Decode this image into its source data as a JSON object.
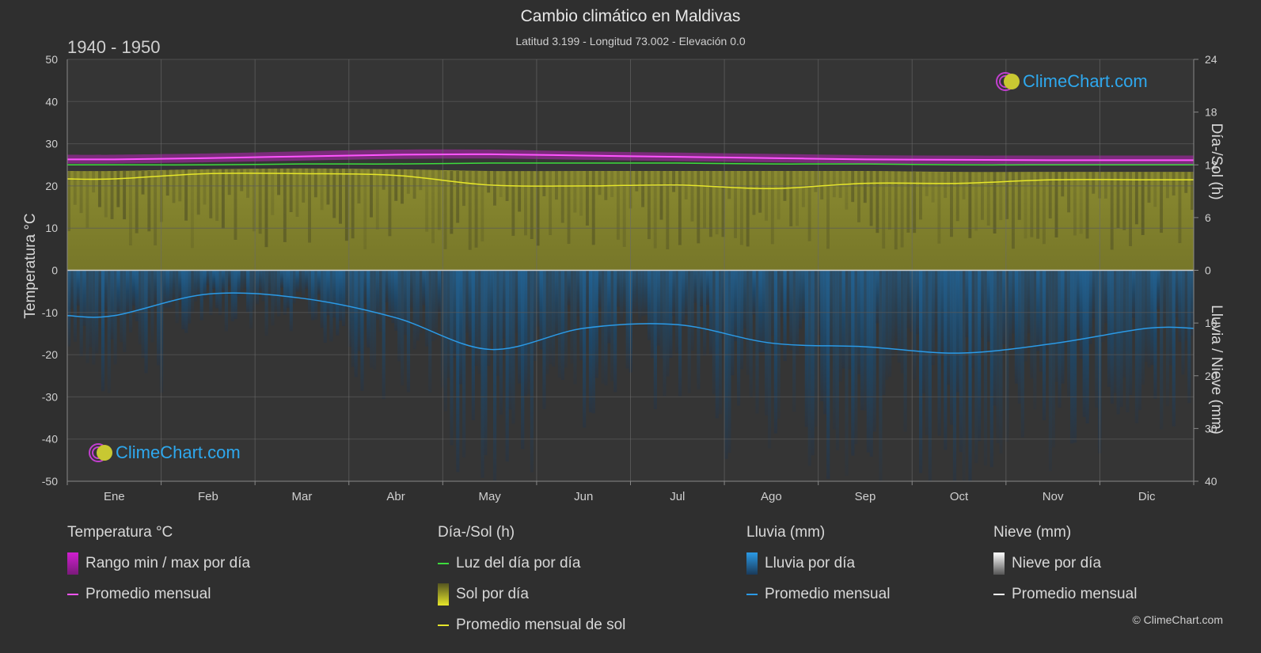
{
  "header": {
    "title": "Cambio climático en Maldivas",
    "subtitle": "Latitud 3.199 - Longitud 73.002 - Elevación 0.0",
    "period": "1940 - 1950"
  },
  "brand": {
    "logo_text": "ClimeChart.com",
    "copyright": "© ClimeChart.com"
  },
  "colors": {
    "background": "#2f2f2f",
    "temp_range": "#d11fd1",
    "temp_avg": "#ff55ff",
    "daylight": "#3ddc3d",
    "sunshine_fill": "#8b8b2c",
    "sunshine_avg": "#e6e62a",
    "rain_fill": "#1c5f93",
    "rain_avg": "#2b9ae6",
    "snow_avg": "#ffffff"
  },
  "chart_data": {
    "type": "line",
    "title": "Cambio climático en Maldivas",
    "categories": [
      "Ene",
      "Feb",
      "Mar",
      "Abr",
      "May",
      "Jun",
      "Jul",
      "Ago",
      "Sep",
      "Oct",
      "Nov",
      "Dic"
    ],
    "left_axis": {
      "label": "Temperatura °C",
      "ylim": [
        -50,
        50
      ],
      "ticks": [
        "50",
        "40",
        "30",
        "20",
        "10",
        "0",
        "-10",
        "-20",
        "-30",
        "-40",
        "-50"
      ]
    },
    "right_axis_top": {
      "label": "Día-/Sol (h)",
      "ylim": [
        0,
        24
      ],
      "ticks": [
        "24",
        "18",
        "12",
        "6",
        "0"
      ]
    },
    "right_axis_bottom": {
      "label": "Lluvia / Nieve (mm)",
      "ylim": [
        0,
        40
      ],
      "ticks": [
        "0",
        "10",
        "20",
        "30",
        "40"
      ]
    },
    "grid": true,
    "series": [
      {
        "name": "Rango min / max por día",
        "unit": "°C",
        "min": [
          25.3,
          25.6,
          26.0,
          26.4,
          26.5,
          26.2,
          25.9,
          25.6,
          25.3,
          25.2,
          25.1,
          25.1
        ],
        "max": [
          27.4,
          27.7,
          28.2,
          28.6,
          28.6,
          28.2,
          27.9,
          27.6,
          27.3,
          27.2,
          27.2,
          27.2
        ]
      },
      {
        "name": "Promedio mensual",
        "unit": "°C",
        "values": [
          26.3,
          26.6,
          27.0,
          27.4,
          27.5,
          27.2,
          26.9,
          26.6,
          26.3,
          26.2,
          26.1,
          26.1
        ]
      },
      {
        "name": "Luz del día por día",
        "unit": "h",
        "values": [
          12.0,
          12.0,
          12.1,
          12.1,
          12.2,
          12.2,
          12.2,
          12.1,
          12.1,
          12.0,
          12.0,
          12.0
        ]
      },
      {
        "name": "Sol por día",
        "unit": "h",
        "values": [
          11.3,
          11.5,
          11.6,
          11.5,
          11.3,
          11.3,
          11.3,
          11.3,
          11.3,
          11.2,
          11.2,
          11.2
        ]
      },
      {
        "name": "Promedio mensual de sol",
        "unit": "h",
        "values": [
          10.4,
          11.0,
          11.0,
          10.8,
          9.7,
          9.6,
          9.7,
          9.3,
          9.9,
          9.9,
          10.3,
          10.3
        ]
      },
      {
        "name": "Promedio mensual lluvia",
        "unit": "mm",
        "values": [
          8.6,
          4.5,
          5.3,
          9.0,
          15.0,
          11.0,
          10.3,
          13.8,
          14.5,
          15.7,
          13.9,
          11.0
        ]
      }
    ]
  },
  "legend": {
    "temperature": {
      "heading": "Temperatura °C",
      "items": [
        "Rango min / max por día",
        "Promedio mensual"
      ]
    },
    "sun": {
      "heading": "Día-/Sol (h)",
      "items": [
        "Luz del día por día",
        "Sol por día",
        "Promedio mensual de sol"
      ]
    },
    "rain": {
      "heading": "Lluvia (mm)",
      "items": [
        "Lluvia por día",
        "Promedio mensual"
      ]
    },
    "snow": {
      "heading": "Nieve (mm)",
      "items": [
        "Nieve por día",
        "Promedio mensual"
      ]
    }
  }
}
